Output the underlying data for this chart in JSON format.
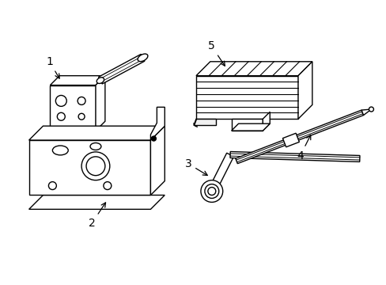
{
  "background_color": "#ffffff",
  "line_color": "#000000",
  "lw": 1.0,
  "fig_width": 4.89,
  "fig_height": 3.6,
  "dpi": 100,
  "label_fontsize": 10
}
